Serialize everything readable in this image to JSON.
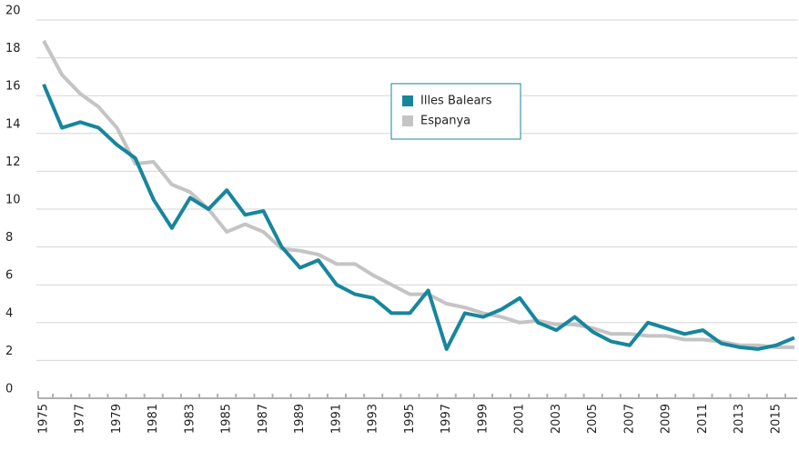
{
  "chart_data": {
    "type": "line",
    "categories": [
      "1975",
      null,
      "1977",
      null,
      "1979",
      null,
      "1981",
      null,
      "1983",
      null,
      "1985",
      null,
      "1987",
      null,
      "1989",
      null,
      "1991",
      null,
      "1993",
      null,
      "1995",
      null,
      "1997",
      null,
      "1999",
      null,
      "2001",
      null,
      "2003",
      null,
      "2005",
      null,
      "2007",
      null,
      "2009",
      null,
      "2011",
      null,
      "2013",
      null,
      "2015",
      null
    ],
    "series": [
      {
        "name": "Illes Balears",
        "color": "#17869c",
        "values": [
          16.6,
          14.3,
          14.6,
          14.3,
          13.4,
          12.7,
          10.5,
          9.0,
          10.6,
          10.0,
          11.0,
          9.7,
          9.9,
          8.0,
          6.9,
          7.3,
          6.0,
          5.5,
          5.3,
          4.5,
          4.5,
          5.7,
          2.6,
          4.5,
          4.3,
          4.7,
          5.3,
          4.0,
          3.6,
          4.3,
          3.5,
          3.0,
          2.8,
          4.0,
          3.7,
          3.4,
          3.6,
          2.9,
          2.7,
          2.6,
          2.8,
          3.2
        ]
      },
      {
        "name": "Espanya",
        "color": "#c4c4c4",
        "values": [
          18.9,
          17.1,
          16.1,
          15.4,
          14.3,
          12.4,
          12.5,
          11.3,
          10.9,
          10.0,
          8.8,
          9.2,
          8.8,
          7.9,
          7.8,
          7.6,
          7.1,
          7.1,
          6.5,
          6.0,
          5.5,
          5.5,
          5.0,
          4.8,
          4.5,
          4.3,
          4.0,
          4.1,
          3.9,
          3.9,
          3.7,
          3.4,
          3.4,
          3.3,
          3.3,
          3.1,
          3.1,
          3.0,
          2.8,
          2.8,
          2.7,
          2.7
        ]
      }
    ],
    "ylim": [
      0,
      20
    ],
    "yticks": [
      0,
      2,
      4,
      6,
      8,
      10,
      12,
      14,
      16,
      18,
      20
    ],
    "grid": true,
    "legend": "top-center"
  }
}
